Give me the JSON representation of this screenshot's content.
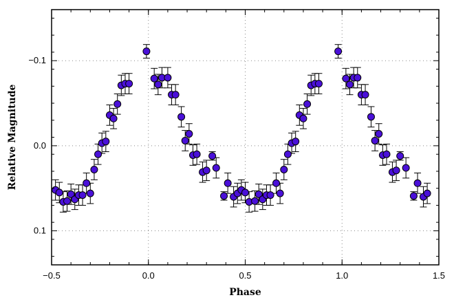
{
  "chart_data": {
    "type": "scatter",
    "xlabel": "Phase",
    "ylabel": "Relative Magnitude",
    "xlim": [
      -0.5,
      1.5
    ],
    "ylim": [
      0.14,
      -0.16
    ],
    "y_inverted": true,
    "grid": true,
    "grid_style": "dotted",
    "x_ticks": [
      {
        "value": -0.5,
        "label": "−0.5"
      },
      {
        "value": 0.0,
        "label": "0.0"
      },
      {
        "value": 0.5,
        "label": "0.5"
      },
      {
        "value": 1.0,
        "label": "1.0"
      },
      {
        "value": 1.5,
        "label": "1.5"
      }
    ],
    "y_ticks": [
      {
        "value": -0.1,
        "label": "−0.1"
      },
      {
        "value": 0.0,
        "label": "0.0"
      },
      {
        "value": 0.1,
        "label": "0.1"
      }
    ],
    "marker_color": "#4a10d8",
    "marker_edge": "#000000",
    "series": [
      {
        "values": [
          {
            "x": -0.48,
            "y": 0.052,
            "err": 0.012
          },
          {
            "x": -0.46,
            "y": 0.055,
            "err": 0.012
          },
          {
            "x": -0.44,
            "y": 0.066,
            "err": 0.012
          },
          {
            "x": -0.42,
            "y": 0.065,
            "err": 0.012
          },
          {
            "x": -0.4,
            "y": 0.057,
            "err": 0.012
          },
          {
            "x": -0.38,
            "y": 0.063,
            "err": 0.012
          },
          {
            "x": -0.36,
            "y": 0.058,
            "err": 0.012
          },
          {
            "x": -0.34,
            "y": 0.058,
            "err": 0.012
          },
          {
            "x": -0.32,
            "y": 0.044,
            "err": 0.012
          },
          {
            "x": -0.3,
            "y": 0.056,
            "err": 0.012
          },
          {
            "x": -0.28,
            "y": 0.028,
            "err": 0.012
          },
          {
            "x": -0.26,
            "y": 0.01,
            "err": 0.012
          },
          {
            "x": -0.24,
            "y": -0.003,
            "err": 0.012
          },
          {
            "x": -0.22,
            "y": -0.005,
            "err": 0.012
          },
          {
            "x": -0.2,
            "y": -0.036,
            "err": 0.012
          },
          {
            "x": -0.18,
            "y": -0.032,
            "err": 0.012
          },
          {
            "x": -0.16,
            "y": -0.049,
            "err": 0.012
          },
          {
            "x": -0.14,
            "y": -0.071,
            "err": 0.012
          },
          {
            "x": -0.12,
            "y": -0.073,
            "err": 0.012
          },
          {
            "x": -0.1,
            "y": -0.073,
            "err": 0.012
          },
          {
            "x": -0.01,
            "y": -0.111,
            "err": 0.008
          },
          {
            "x": 0.03,
            "y": -0.079,
            "err": 0.012
          },
          {
            "x": 0.05,
            "y": -0.072,
            "err": 0.012
          },
          {
            "x": 0.07,
            "y": -0.08,
            "err": 0.012
          },
          {
            "x": 0.1,
            "y": -0.08,
            "err": 0.012
          },
          {
            "x": 0.12,
            "y": -0.06,
            "err": 0.012
          },
          {
            "x": 0.14,
            "y": -0.06,
            "err": 0.012
          },
          {
            "x": 0.17,
            "y": -0.034,
            "err": 0.012
          },
          {
            "x": 0.19,
            "y": -0.006,
            "err": 0.012
          },
          {
            "x": 0.21,
            "y": -0.014,
            "err": 0.012
          },
          {
            "x": 0.23,
            "y": 0.011,
            "err": 0.012
          },
          {
            "x": 0.25,
            "y": 0.01,
            "err": 0.012
          },
          {
            "x": 0.28,
            "y": 0.031,
            "err": 0.012
          },
          {
            "x": 0.3,
            "y": 0.029,
            "err": 0.012
          },
          {
            "x": 0.33,
            "y": 0.012,
            "err": 0.005
          },
          {
            "x": 0.35,
            "y": 0.026,
            "err": 0.012
          },
          {
            "x": 0.39,
            "y": 0.059,
            "err": 0.005
          },
          {
            "x": 0.41,
            "y": 0.044,
            "err": 0.012
          },
          {
            "x": 0.44,
            "y": 0.06,
            "err": 0.012
          },
          {
            "x": 0.46,
            "y": 0.056,
            "err": 0.012
          },
          {
            "x": 0.48,
            "y": 0.052,
            "err": 0.012
          },
          {
            "x": 0.5,
            "y": 0.055,
            "err": 0.012
          },
          {
            "x": 0.52,
            "y": 0.066,
            "err": 0.012
          },
          {
            "x": 0.55,
            "y": 0.065,
            "err": 0.012
          },
          {
            "x": 0.57,
            "y": 0.057,
            "err": 0.012
          },
          {
            "x": 0.59,
            "y": 0.063,
            "err": 0.012
          },
          {
            "x": 0.61,
            "y": 0.058,
            "err": 0.012
          },
          {
            "x": 0.63,
            "y": 0.058,
            "err": 0.012
          },
          {
            "x": 0.66,
            "y": 0.044,
            "err": 0.012
          },
          {
            "x": 0.68,
            "y": 0.056,
            "err": 0.012
          },
          {
            "x": 0.7,
            "y": 0.028,
            "err": 0.012
          },
          {
            "x": 0.72,
            "y": 0.01,
            "err": 0.012
          },
          {
            "x": 0.74,
            "y": -0.003,
            "err": 0.012
          },
          {
            "x": 0.76,
            "y": -0.005,
            "err": 0.012
          },
          {
            "x": 0.78,
            "y": -0.036,
            "err": 0.012
          },
          {
            "x": 0.8,
            "y": -0.032,
            "err": 0.012
          },
          {
            "x": 0.82,
            "y": -0.049,
            "err": 0.012
          },
          {
            "x": 0.84,
            "y": -0.071,
            "err": 0.012
          },
          {
            "x": 0.86,
            "y": -0.073,
            "err": 0.012
          },
          {
            "x": 0.88,
            "y": -0.073,
            "err": 0.012
          },
          {
            "x": 0.98,
            "y": -0.111,
            "err": 0.008
          },
          {
            "x": 1.02,
            "y": -0.079,
            "err": 0.012
          },
          {
            "x": 1.04,
            "y": -0.072,
            "err": 0.012
          },
          {
            "x": 1.06,
            "y": -0.08,
            "err": 0.012
          },
          {
            "x": 1.08,
            "y": -0.08,
            "err": 0.012
          },
          {
            "x": 1.1,
            "y": -0.06,
            "err": 0.012
          },
          {
            "x": 1.12,
            "y": -0.06,
            "err": 0.012
          },
          {
            "x": 1.15,
            "y": -0.034,
            "err": 0.012
          },
          {
            "x": 1.17,
            "y": -0.006,
            "err": 0.012
          },
          {
            "x": 1.19,
            "y": -0.014,
            "err": 0.012
          },
          {
            "x": 1.21,
            "y": 0.011,
            "err": 0.012
          },
          {
            "x": 1.23,
            "y": 0.01,
            "err": 0.012
          },
          {
            "x": 1.26,
            "y": 0.031,
            "err": 0.012
          },
          {
            "x": 1.28,
            "y": 0.029,
            "err": 0.012
          },
          {
            "x": 1.3,
            "y": 0.012,
            "err": 0.005
          },
          {
            "x": 1.33,
            "y": 0.026,
            "err": 0.012
          },
          {
            "x": 1.37,
            "y": 0.059,
            "err": 0.005
          },
          {
            "x": 1.39,
            "y": 0.044,
            "err": 0.012
          },
          {
            "x": 1.42,
            "y": 0.06,
            "err": 0.012
          },
          {
            "x": 1.44,
            "y": 0.056,
            "err": 0.012
          }
        ]
      }
    ]
  }
}
